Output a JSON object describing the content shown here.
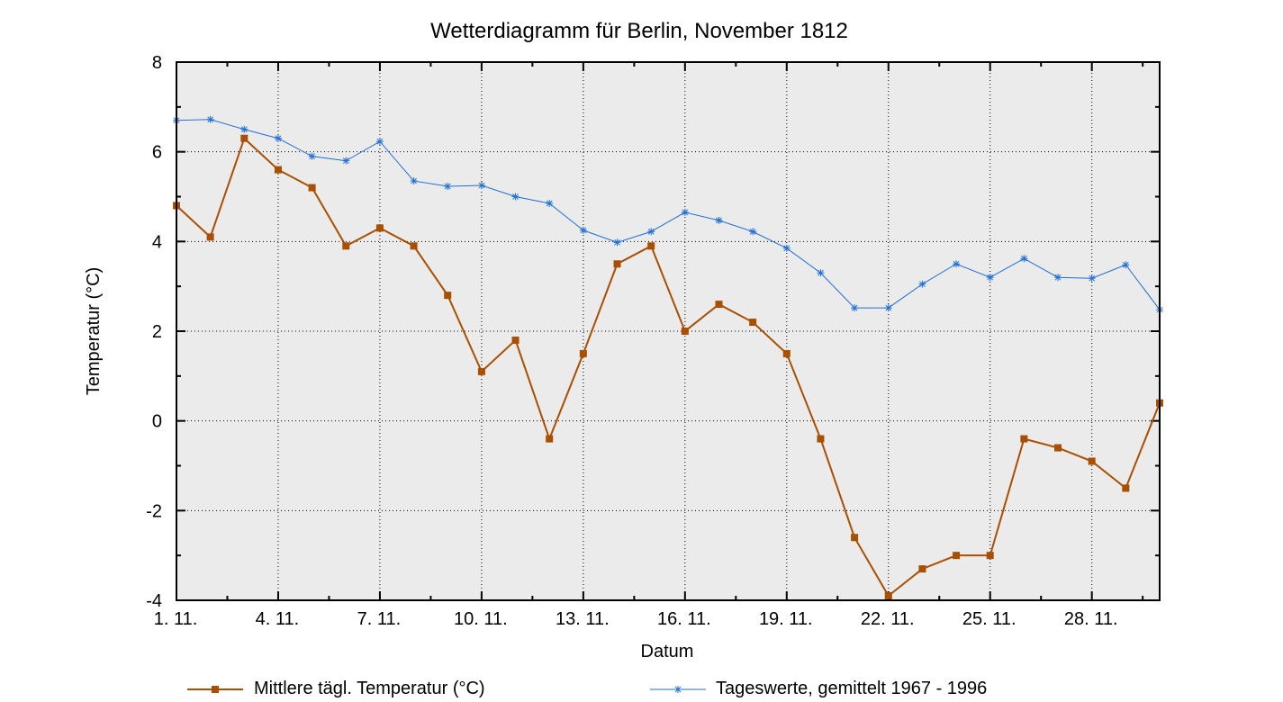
{
  "chart_data": {
    "type": "line",
    "title": "Wetterdiagramm für Berlin, November 1812",
    "xlabel": "Datum",
    "ylabel": "Temperatur (°C)",
    "ylim": [
      -4,
      8
    ],
    "xlim": [
      1,
      30
    ],
    "y_ticks": [
      -4,
      -2,
      0,
      2,
      4,
      6,
      8
    ],
    "y_tick_labels": [
      "-4",
      "-2",
      "0",
      "2",
      "4",
      "6",
      "8"
    ],
    "x_ticks": [
      1,
      4,
      7,
      10,
      13,
      16,
      19,
      22,
      25,
      28
    ],
    "x_tick_labels": [
      "1. 11.",
      "4. 11.",
      "7. 11.",
      "10. 11.",
      "13. 11.",
      "16. 11.",
      "19. 11.",
      "22. 11.",
      "25. 11.",
      "28. 11."
    ],
    "grid": true,
    "legend_position": "bottom",
    "x": [
      1,
      2,
      3,
      4,
      5,
      6,
      7,
      8,
      9,
      10,
      11,
      12,
      13,
      14,
      15,
      16,
      17,
      18,
      19,
      20,
      21,
      22,
      23,
      24,
      25,
      26,
      27,
      28,
      29,
      30
    ],
    "series": [
      {
        "name": "Mittlere tägl. Temperatur (°C)",
        "color": "#a84f00",
        "marker": "square",
        "values": [
          4.8,
          4.1,
          6.3,
          5.6,
          5.2,
          3.9,
          4.3,
          3.9,
          2.8,
          1.1,
          1.8,
          -0.4,
          1.5,
          3.5,
          3.9,
          2.0,
          2.6,
          2.2,
          1.5,
          -0.4,
          -2.6,
          -3.9,
          -3.3,
          -3.0,
          -3.0,
          -0.4,
          -0.6,
          -0.9,
          -1.5,
          0.4
        ]
      },
      {
        "name": "Tageswerte, gemittelt 1967 - 1996",
        "color": "#1f6fd6",
        "marker": "star",
        "values": [
          6.7,
          6.72,
          6.5,
          6.3,
          5.9,
          5.8,
          6.23,
          5.35,
          5.23,
          5.25,
          5.0,
          4.85,
          4.25,
          3.98,
          4.22,
          4.65,
          4.47,
          4.22,
          3.85,
          3.3,
          2.52,
          2.52,
          3.05,
          3.5,
          3.2,
          3.62,
          3.2,
          3.18,
          3.48,
          2.48
        ]
      }
    ]
  }
}
